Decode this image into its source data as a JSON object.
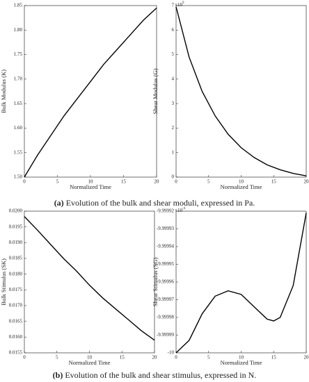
{
  "chart_data": [
    {
      "type": "line",
      "y_label": "Bulk Modulus (K)",
      "x_label": "Normalized Time",
      "color": "#000000",
      "x": [
        0,
        2,
        4,
        6,
        8,
        10,
        12,
        14,
        16,
        18,
        20
      ],
      "values": [
        1.5,
        1.545,
        1.585,
        1.625,
        1.66,
        1.695,
        1.73,
        1.76,
        1.79,
        1.82,
        1.845
      ],
      "xlim": [
        0,
        20
      ],
      "xticks": [
        0,
        5,
        10,
        15,
        20
      ],
      "ylim": [
        1.5,
        1.85
      ],
      "yticks": [
        {
          "value": 1.5,
          "label": "1.50"
        },
        1.55,
        {
          "value": 1.6,
          "label": "1.60"
        },
        1.65,
        {
          "value": 1.7,
          "label": "1.70"
        },
        1.75,
        {
          "value": 1.8,
          "label": "1.80"
        },
        1.85
      ]
    },
    {
      "type": "line",
      "y_label": "Shear Modulus (G)",
      "x_label": "Normalized Time",
      "color": "#000000",
      "y_scale_label": {
        "base": "×10",
        "exponent": "9"
      },
      "x": [
        0,
        2,
        4,
        6,
        8,
        10,
        12,
        14,
        16,
        18,
        20
      ],
      "values": [
        6.95,
        4.9,
        3.5,
        2.5,
        1.75,
        1.2,
        0.8,
        0.5,
        0.3,
        0.15,
        0.05
      ],
      "xlim": [
        0,
        20
      ],
      "xticks": [
        0,
        5,
        10,
        15,
        20
      ],
      "ylim": [
        0,
        7
      ],
      "yticks": [
        0,
        1,
        2,
        3,
        4,
        5,
        6,
        7
      ]
    },
    {
      "type": "line",
      "y_label": "Bulk Stimulus (SK)",
      "x_label": "Normalized Time",
      "color": "#000000",
      "x": [
        0,
        2,
        4,
        6,
        8,
        10,
        12,
        14,
        16,
        18,
        20
      ],
      "values": [
        0.01983,
        0.0194,
        0.01895,
        0.0185,
        0.0181,
        0.01765,
        0.01725,
        0.0169,
        0.01655,
        0.0162,
        0.0159
      ],
      "xlim": [
        0,
        20
      ],
      "xticks": [
        0,
        5,
        10,
        15,
        20
      ],
      "ylim": [
        0.0155,
        0.02
      ],
      "yticks": [
        0.0155,
        {
          "value": 0.016,
          "label": "0.0160"
        },
        0.0165,
        {
          "value": 0.017,
          "label": "0.0170"
        },
        0.0175,
        {
          "value": 0.018,
          "label": "0.0180"
        },
        0.0185,
        {
          "value": 0.019,
          "label": "0.0190"
        },
        0.0195,
        {
          "value": 0.02,
          "label": "0.0200"
        }
      ]
    },
    {
      "type": "line",
      "y_label": "Shear Stimulus (SG)",
      "x_label": "Normalized Time",
      "color": "#000000",
      "y_scale_label": {
        "base": "×10",
        "exponent": "-4"
      },
      "x": [
        0,
        2,
        4,
        6,
        8,
        10,
        12,
        14,
        15,
        16,
        18,
        20
      ],
      "values": [
        -10,
        -9.999993,
        -9.999978,
        -9.999968,
        -9.999965,
        -9.999967,
        -9.999974,
        -9.999981,
        -9.999982,
        -9.99998,
        -9.999962,
        -9.999921
      ],
      "xlim": [
        0,
        20
      ],
      "xticks": [
        0,
        5,
        10,
        15,
        20
      ],
      "ylim": [
        -10,
        -9.99992
      ],
      "yticks": [
        -10,
        -9.99999,
        -9.99998,
        -9.99997,
        -9.99996,
        -9.99995,
        -9.99994,
        -9.99993,
        -9.99992
      ]
    }
  ],
  "captions": [
    {
      "label": "(a)",
      "text": " Evolution of the bulk and shear moduli, expressed in Pa."
    },
    {
      "label": "(b)",
      "text": " Evolution of the bulk and shear stimulus, expressed in N."
    }
  ]
}
